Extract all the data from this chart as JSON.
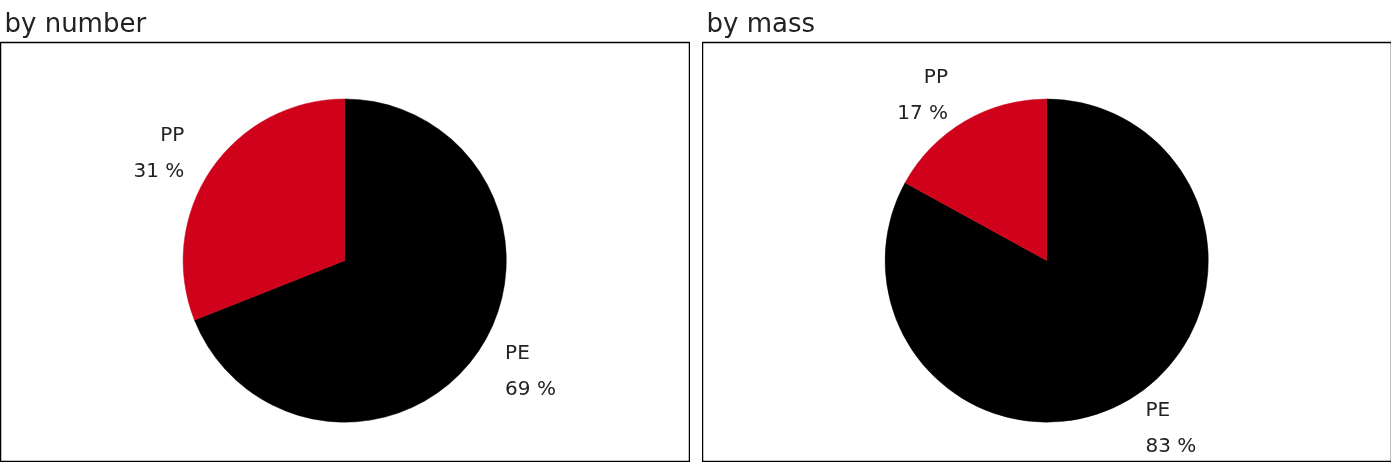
{
  "chart_data": [
    {
      "type": "pie",
      "title": "by number",
      "categories": [
        "PE",
        "PP"
      ],
      "values": [
        69,
        31
      ],
      "colors": [
        "#000000",
        "#d0021b"
      ],
      "value_labels": [
        "69 %",
        "31 %"
      ]
    },
    {
      "type": "pie",
      "title": "by mass",
      "categories": [
        "PE",
        "PP"
      ],
      "values": [
        83,
        17
      ],
      "colors": [
        "#000000",
        "#d0021b"
      ],
      "value_labels": [
        "83 %",
        "17 %"
      ]
    }
  ]
}
